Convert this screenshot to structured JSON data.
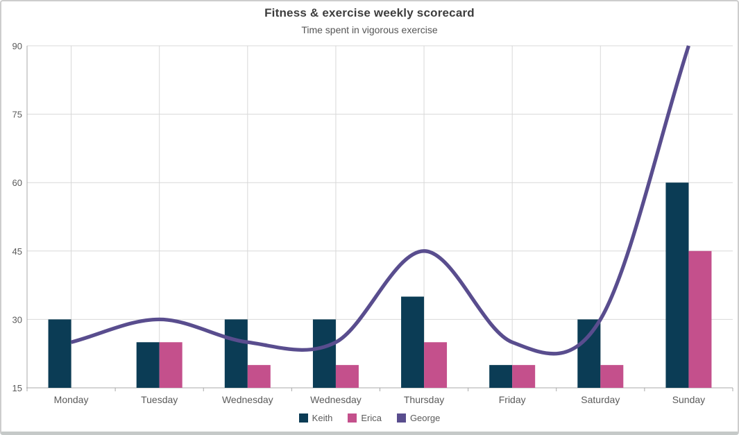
{
  "chart_data": {
    "type": "bar",
    "combo": "two bar series + one smoothed spline series",
    "title": "Fitness & exercise weekly scorecard",
    "subtitle": "Time spent in vigorous exercise",
    "categories": [
      "Monday",
      "Tuesday",
      "Wednesday",
      "Wednesday",
      "Thursday",
      "Friday",
      "Saturday",
      "Sunday"
    ],
    "y_ticks": [
      15,
      30,
      45,
      60,
      75,
      90
    ],
    "ylim": [
      15,
      90
    ],
    "grid": true,
    "legend_position": "bottom",
    "series": [
      {
        "name": "Keith",
        "type": "bar",
        "color": "#0b3c55",
        "values": [
          30,
          25,
          30,
          30,
          35,
          20,
          30,
          60
        ]
      },
      {
        "name": "Erica",
        "type": "bar",
        "color": "#c4508c",
        "values": [
          null,
          25,
          20,
          20,
          25,
          20,
          20,
          45
        ]
      },
      {
        "name": "George",
        "type": "spline",
        "color": "#594d8e",
        "values": [
          25,
          30,
          25,
          25,
          45,
          25,
          30,
          90
        ]
      }
    ],
    "colors": {
      "grid": "#d8d8d8",
      "axis": "#a8a8a8",
      "tick_label": "#5a5a5a",
      "title_text": "#3d3d3d",
      "card_border": "#cdcdcd"
    }
  }
}
